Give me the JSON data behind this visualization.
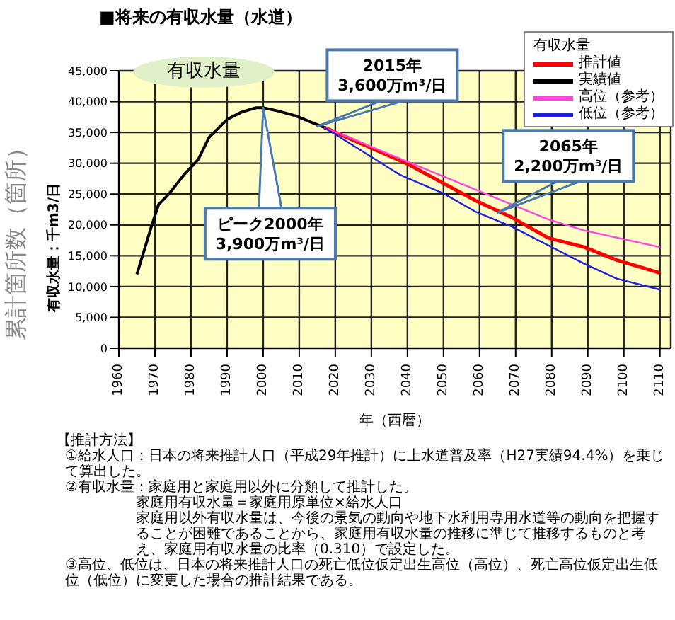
{
  "chart_data": {
    "type": "line",
    "title": "■将来の有収水量（水道）",
    "xlabel": "年（西暦）",
    "ylabel": "有収水量：千m3/日",
    "legend_title": "有収水量",
    "legend": "top right",
    "grid": true,
    "marker": "none",
    "xlim": [
      1960,
      2113
    ],
    "xticks": [
      1960,
      1970,
      1980,
      1990,
      2000,
      2010,
      2020,
      2030,
      2040,
      2050,
      2060,
      2070,
      2080,
      2090,
      2100,
      2110
    ],
    "ylim": [
      0,
      45000
    ],
    "yticks": [
      {
        "value": 0,
        "label": "0"
      },
      {
        "value": 5000,
        "label": "5,000"
      },
      {
        "value": 10000,
        "label": "10,000"
      },
      {
        "value": 15000,
        "label": "15,000"
      },
      {
        "value": 20000,
        "label": "20,000"
      },
      {
        "value": 25000,
        "label": "25,000"
      },
      {
        "value": 30000,
        "label": "30,000"
      },
      {
        "value": 35000,
        "label": "35,000"
      },
      {
        "value": 40000,
        "label": "40,000"
      },
      {
        "value": 45000,
        "label": "45,000"
      }
    ],
    "series": [
      {
        "name": "推計値",
        "color": "#ff0000",
        "x": [
          2017,
          2040,
          2059,
          2069,
          2079,
          2089,
          2098,
          2110
        ],
        "values": [
          35800,
          29900,
          23900,
          21200,
          17900,
          16400,
          14300,
          12200
        ]
      },
      {
        "name": "実績値",
        "color": "#000000",
        "x": [
          1965,
          1969,
          1971,
          1974,
          1978,
          1982,
          1985,
          1990,
          1994,
          1998,
          2000,
          2004,
          2009,
          2014,
          2017
        ],
        "values": [
          12000,
          19700,
          23300,
          25100,
          28100,
          30600,
          34200,
          37100,
          38300,
          39000,
          39000,
          38500,
          37700,
          36500,
          35800
        ]
      },
      {
        "name": "高位（参考）",
        "color": "#ff44dd",
        "x": [
          2017,
          2039,
          2059,
          2069,
          2079,
          2089,
          2110
        ],
        "values": [
          35800,
          30500,
          25700,
          23300,
          20900,
          19100,
          16400
        ]
      },
      {
        "name": "低位（参考）",
        "color": "#2222dd",
        "x": [
          2017,
          2038,
          2050,
          2059,
          2069,
          2079,
          2089,
          2098,
          2110
        ],
        "values": [
          35800,
          28100,
          25100,
          22100,
          19700,
          16700,
          13700,
          11300,
          9500
        ]
      }
    ],
    "annotations": [
      "有収水量",
      "累計箇所数（箇所）",
      {
        "text": "2015年\n3,600万m³/日",
        "x": 2015,
        "y": 36000
      },
      {
        "text": "ピーク2000年\n3,900万m³/日",
        "x": 2000,
        "y": 39000
      },
      {
        "text": "2065年\n2,200万m³/日",
        "x": 2065,
        "y": 22000
      },
      "【推計方法】",
      "①給水人口：日本の将来推計人口（平成29年推計）に上水道普及率（H27実績94.4%）を乗じて算出した。",
      "②有収水量：家庭用と家庭用以外に分類して推計した。",
      "家庭用有収水量＝家庭用原単位×給水人口",
      "家庭用以外有収水量は、今後の景気の動向や地下水利用専用水道等の動向を把握することが困難であることから、家庭用有収水量の推移に準じて推移するものと考え、家庭用有収水量の比率（0.310）で設定した。",
      "③高位、低位は、日本の将来推計人口の死亡低位仮定出生高位（高位）、死亡高位仮定出生低位（低位）に変更した場合の推計結果である。"
    ]
  }
}
